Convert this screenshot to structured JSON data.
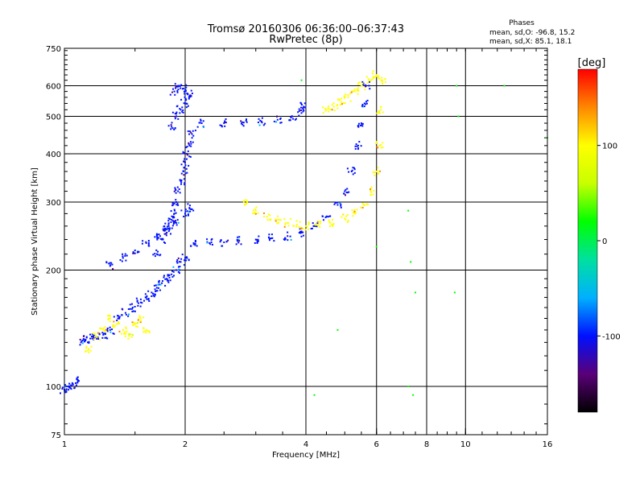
{
  "chart_data": {
    "type": "scatter",
    "title": "Tromsø 20160306 06:36:00–06:37:43",
    "subtitle": "RwPretec (8p)",
    "xlabel": "Frequency [MHz]",
    "ylabel": "Stationary phase Virtual Height [km]",
    "x_scale": "log",
    "y_scale": "log",
    "xlim": [
      1,
      16
    ],
    "ylim": [
      75,
      750
    ],
    "x_ticks": [
      1,
      2,
      4,
      6,
      8,
      10,
      16
    ],
    "x_tick_labels": [
      "1",
      "2",
      "4",
      "6",
      "8",
      "10",
      "16"
    ],
    "y_ticks": [
      75,
      100,
      200,
      300,
      400,
      500,
      600,
      750
    ],
    "y_tick_labels": [
      "75",
      "100",
      "200",
      "300",
      "400",
      "500",
      "600",
      "750"
    ],
    "grid": true,
    "legend": {
      "title": "Phases",
      "lines": [
        "mean, sd,O:  -96.8, 15.2",
        "mean, sd,X:  85.1, 18.1"
      ],
      "placement": "top-right"
    },
    "colorbar": {
      "label": "[deg]",
      "range": [
        -180,
        180
      ],
      "ticks": [
        100,
        0,
        -100
      ],
      "tick_labels": [
        "100",
        "0",
        "-100"
      ],
      "colors": [
        "#000000",
        "#5a0078",
        "#0010ff",
        "#00b0ff",
        "#00e0a0",
        "#00ff00",
        "#c8ff00",
        "#ffff00",
        "#ff8800",
        "#ff0000"
      ]
    },
    "series": [
      {
        "group": "O-low-layer",
        "phase": -100,
        "x": [
          1.0,
          1.02,
          1.05,
          1.08,
          1.1,
          1.13,
          1.16,
          1.2,
          1.25,
          1.3,
          1.36,
          1.42,
          1.48,
          1.55,
          1.6,
          1.65,
          1.7,
          1.75,
          1.8,
          1.85,
          1.9,
          1.95,
          2.0,
          1.3,
          1.4,
          1.5,
          1.6,
          1.7,
          1.8,
          1.9,
          2.0,
          2.05
        ],
        "y": [
          98,
          100,
          101,
          104,
          130,
          132,
          133,
          134,
          136,
          140,
          150,
          155,
          160,
          165,
          170,
          175,
          180,
          185,
          190,
          195,
          200,
          210,
          215,
          205,
          215,
          225,
          235,
          245,
          255,
          265,
          280,
          290
        ]
      },
      {
        "group": "O-dense-column",
        "phase": -110,
        "x": [
          1.7,
          1.75,
          1.8,
          1.82,
          1.85,
          1.88,
          1.9,
          1.92,
          1.95,
          1.98,
          2.0,
          2.02,
          2.05,
          2.08,
          1.85,
          1.9,
          1.95,
          2.0,
          2.05,
          1.88,
          1.93,
          1.98,
          2.03
        ],
        "y": [
          220,
          240,
          250,
          260,
          270,
          280,
          300,
          320,
          340,
          360,
          380,
          400,
          420,
          450,
          470,
          500,
          520,
          540,
          560,
          580,
          600,
          590,
          570
        ]
      },
      {
        "group": "O-E-F-low-trace",
        "phase": -100,
        "x": [
          2.1,
          2.3,
          2.5,
          2.7,
          3.0,
          3.3,
          3.6,
          3.9,
          4.2,
          4.5,
          4.8,
          5.0,
          5.2,
          5.4,
          5.5,
          5.6,
          5.65
        ],
        "y": [
          235,
          235,
          236,
          238,
          240,
          242,
          245,
          250,
          260,
          275,
          295,
          320,
          360,
          420,
          480,
          540,
          600
        ]
      },
      {
        "group": "O-F2-upper-trace",
        "phase": -100,
        "x": [
          2.2,
          2.5,
          2.8,
          3.1,
          3.4,
          3.7,
          3.9,
          3.95
        ],
        "y": [
          480,
          480,
          482,
          485,
          490,
          500,
          510,
          530
        ]
      },
      {
        "group": "X-low-layer",
        "phase": 100,
        "x": [
          1.15,
          1.2,
          1.25,
          1.3,
          1.35,
          1.4,
          1.45,
          1.5,
          1.55,
          1.6
        ],
        "y": [
          125,
          135,
          140,
          150,
          145,
          140,
          135,
          145,
          150,
          140
        ]
      },
      {
        "group": "X-F2-trace",
        "phase": 110,
        "x": [
          2.8,
          3.0,
          3.2,
          3.4,
          3.6,
          3.8,
          4.0,
          4.3,
          4.6,
          5.0,
          5.3,
          5.6,
          5.8,
          6.0,
          6.1,
          6.15,
          6.2
        ],
        "y": [
          300,
          285,
          275,
          270,
          265,
          262,
          260,
          262,
          265,
          272,
          280,
          295,
          320,
          360,
          420,
          520,
          620
        ]
      },
      {
        "group": "X-upper-fragment",
        "phase": 110,
        "x": [
          4.5,
          4.7,
          4.9,
          5.1,
          5.3,
          5.5,
          5.8,
          6.0
        ],
        "y": [
          520,
          530,
          545,
          560,
          580,
          600,
          620,
          640
        ]
      },
      {
        "group": "scattered-points",
        "phase": 0,
        "x": [
          3.9,
          4.2,
          4.8,
          6.0,
          7.2,
          7.3,
          7.5,
          9.5,
          9.6,
          12.5,
          16.0,
          7.2,
          7.4,
          9.4
        ],
        "y": [
          620,
          95,
          140,
          230,
          285,
          210,
          175,
          600,
          500,
          600,
          440,
          100,
          95,
          175
        ]
      }
    ]
  }
}
